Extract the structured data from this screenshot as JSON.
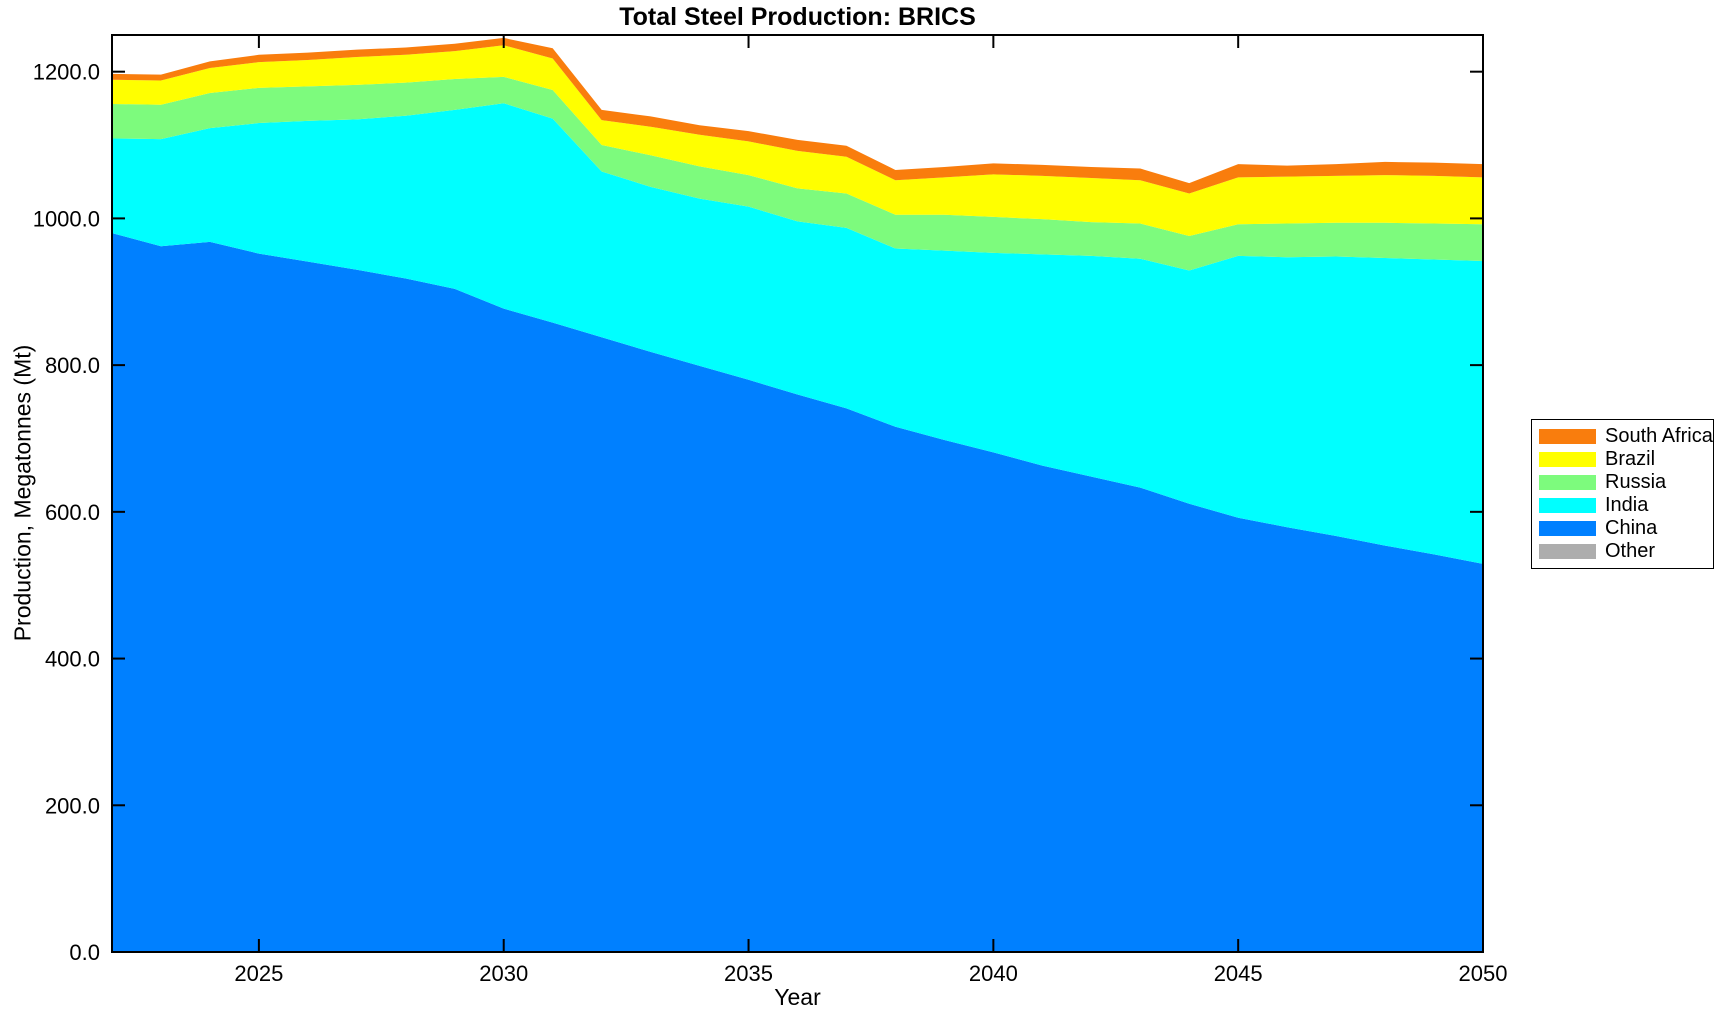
{
  "title": "Total Steel Production: BRICS",
  "axes": {
    "xlabel": "Year",
    "ylabel": "Production, Megatonnes (Mt)"
  },
  "colors": {
    "axis": "#000000",
    "background": "#ffffff"
  },
  "chart_data": {
    "type": "area",
    "stacked": true,
    "title": "Total Steel Production: BRICS",
    "xlabel": "Year",
    "ylabel": "Production, Megatonnes (Mt)",
    "x": [
      2022,
      2023,
      2024,
      2025,
      2026,
      2027,
      2028,
      2029,
      2030,
      2031,
      2032,
      2033,
      2034,
      2035,
      2036,
      2037,
      2038,
      2039,
      2040,
      2041,
      2042,
      2043,
      2044,
      2045,
      2046,
      2047,
      2048,
      2049,
      2050
    ],
    "series": [
      {
        "name": "China",
        "color": "#0080FF",
        "values": [
          980,
          962,
          968,
          952,
          941,
          930,
          918,
          904,
          877,
          858,
          838,
          818,
          799,
          780,
          760,
          741,
          716,
          698,
          681,
          663,
          648,
          633,
          611,
          592,
          579,
          567,
          554,
          542,
          529
        ]
      },
      {
        "name": "India",
        "color": "#00FFFF",
        "values": [
          129,
          146,
          155,
          178,
          192,
          205,
          222,
          244,
          280,
          278,
          226,
          225,
          228,
          236,
          236,
          246,
          243,
          258,
          272,
          288,
          301,
          312,
          318,
          357,
          368,
          381,
          392,
          402,
          413
        ]
      },
      {
        "name": "Russia",
        "color": "#7DFB7D",
        "values": [
          47,
          47,
          48,
          48,
          47,
          47,
          45,
          42,
          36,
          39,
          36,
          43,
          44,
          43,
          45,
          47,
          46,
          49,
          49,
          48,
          46,
          48,
          47,
          43,
          46,
          46,
          48,
          49,
          50
        ]
      },
      {
        "name": "Brazil",
        "color": "#FFFF00",
        "values": [
          33,
          33,
          34,
          35,
          36,
          38,
          38,
          38,
          43,
          43,
          34,
          39,
          43,
          46,
          51,
          50,
          47,
          51,
          58,
          59,
          60,
          59,
          58,
          64,
          64,
          64,
          65,
          65,
          64
        ]
      },
      {
        "name": "South Africa",
        "color": "#F97D0D",
        "values": [
          8,
          8,
          9,
          10,
          10,
          10,
          10,
          10,
          10,
          14,
          14,
          14,
          13,
          14,
          15,
          15,
          14,
          14,
          15,
          15,
          15,
          16,
          14,
          18,
          15,
          16,
          18,
          18,
          18
        ]
      },
      {
        "name": "Other",
        "color": "#ADADAD",
        "values": [
          0,
          0,
          0,
          0,
          0,
          0,
          0,
          0,
          0,
          0,
          0,
          0,
          0,
          0,
          0,
          0,
          0,
          0,
          0,
          0,
          0,
          0,
          0,
          0,
          0,
          0,
          0,
          0,
          0
        ]
      }
    ],
    "legend_order": [
      "South Africa",
      "Brazil",
      "Russia",
      "India",
      "China",
      "Other"
    ],
    "legend_position": "outside-right",
    "xlim": [
      2022,
      2050
    ],
    "ylim": [
      0,
      1250
    ],
    "xticks": [
      2025,
      2030,
      2035,
      2040,
      2045,
      2050
    ],
    "yticks": [
      0,
      200,
      400,
      600,
      800,
      1000,
      1200
    ],
    "ytick_labels": [
      "0.0",
      "200.0",
      "400.0",
      "600.0",
      "800.0",
      "1000.0",
      "1200.0"
    ],
    "grid": false
  }
}
